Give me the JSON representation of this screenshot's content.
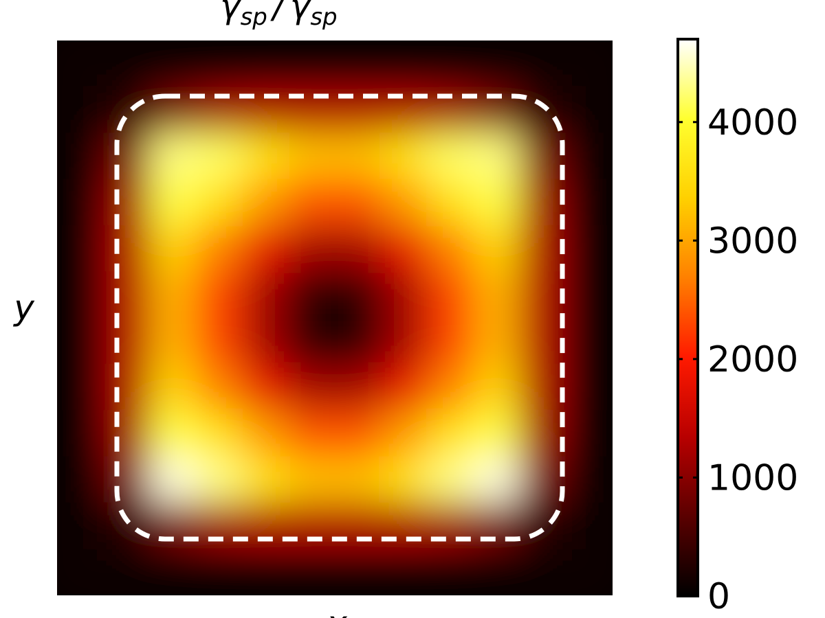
{
  "chart_data": {
    "type": "heatmap",
    "title": {
      "numerator": "γ",
      "numerator_sub": "sp",
      "separator": "/",
      "denominator": "γ",
      "denominator_sub": "sp"
    },
    "xlabel": "x",
    "ylabel": "y",
    "z": [
      [
        50,
        80,
        100,
        120,
        120,
        120,
        120,
        120,
        120,
        100,
        80,
        50
      ],
      [
        80,
        300,
        900,
        1200,
        1300,
        1300,
        1300,
        1300,
        1200,
        900,
        300,
        80
      ],
      [
        100,
        900,
        4300,
        4200,
        3600,
        3200,
        3200,
        3600,
        4200,
        4300,
        900,
        100
      ],
      [
        120,
        1200,
        4100,
        3600,
        2900,
        2400,
        2400,
        2900,
        3600,
        4100,
        1200,
        120
      ],
      [
        120,
        1300,
        3400,
        2700,
        1800,
        1200,
        1200,
        1800,
        2700,
        3400,
        1300,
        120
      ],
      [
        120,
        1300,
        3100,
        2300,
        1200,
        300,
        300,
        1200,
        2300,
        3100,
        1300,
        120
      ],
      [
        120,
        1300,
        3100,
        2300,
        1200,
        300,
        300,
        1200,
        2300,
        3100,
        1300,
        120
      ],
      [
        120,
        1300,
        3400,
        2700,
        1800,
        1200,
        1200,
        1800,
        2700,
        3400,
        1300,
        120
      ],
      [
        120,
        1200,
        4100,
        3600,
        2900,
        2400,
        2400,
        2900,
        3600,
        4100,
        1200,
        120
      ],
      [
        100,
        900,
        4600,
        4300,
        3600,
        3200,
        3200,
        3600,
        4300,
        4600,
        900,
        100
      ],
      [
        80,
        300,
        900,
        1200,
        1300,
        1300,
        1300,
        1300,
        1200,
        900,
        300,
        80
      ],
      [
        50,
        80,
        100,
        120,
        120,
        120,
        120,
        120,
        120,
        100,
        80,
        50
      ]
    ],
    "zlim": [
      0,
      4700
    ],
    "zticks": [
      0,
      1000,
      2000,
      3000,
      4000
    ],
    "colormap": [
      "#000000",
      "#5a0000",
      "#b80000",
      "#ff1a00",
      "#ff8000",
      "#ffd000",
      "#ffff30",
      "#ffffff"
    ]
  }
}
